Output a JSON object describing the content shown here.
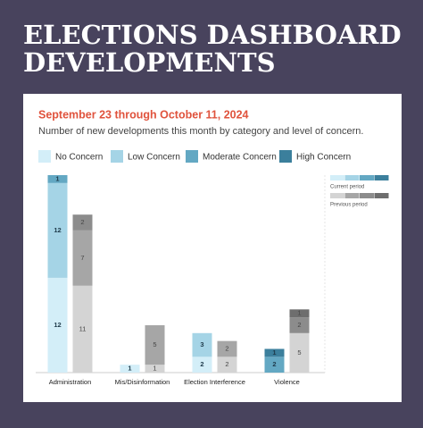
{
  "header": {
    "title_lines": [
      "ELECTIONS DASHBOARD",
      "DEVELOPMENTS"
    ]
  },
  "chart_data": {
    "type": "stacked-bar-comparison",
    "subtitle": "September 23 through October 11, 2024",
    "description": "Number of new developments this month by category and level of concern.",
    "categories": [
      "Administration",
      "Mis/Disinformation",
      "Election Interference",
      "Violence"
    ],
    "periods": [
      {
        "name": "Current period",
        "series": [
          {
            "name": "No Concern",
            "color": "#d3eef8",
            "values": [
              12,
              1,
              2,
              0
            ]
          },
          {
            "name": "Low Concern",
            "color": "#a5d4e6",
            "values": [
              12,
              0,
              3,
              0
            ]
          },
          {
            "name": "Moderate Concern",
            "color": "#63a8c3",
            "values": [
              1,
              0,
              0,
              2
            ]
          },
          {
            "name": "High Concern",
            "color": "#3b7f9c",
            "values": [
              0,
              0,
              0,
              1
            ]
          }
        ]
      },
      {
        "name": "Previous period",
        "series": [
          {
            "color": "#d4d4d4",
            "values": [
              11,
              1,
              2,
              5
            ]
          },
          {
            "color": "#a6a6a6",
            "values": [
              7,
              5,
              2,
              0
            ]
          },
          {
            "color": "#8c8c8c",
            "values": [
              2,
              0,
              0,
              2
            ]
          },
          {
            "color": "#6e6e6e",
            "values": [
              0,
              0,
              0,
              1
            ]
          }
        ]
      }
    ]
  }
}
